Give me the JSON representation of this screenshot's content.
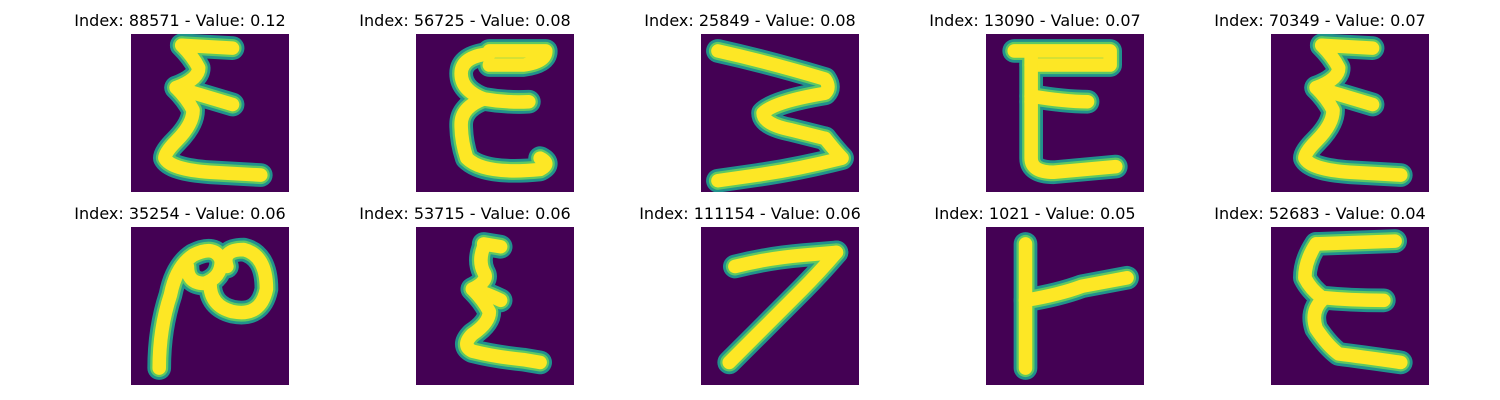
{
  "background": "#ffffff",
  "colors": {
    "tile_background": "#440154",
    "stroke_edge": "#21918c",
    "stroke_mid": "#5ec962",
    "stroke_core": "#fde725"
  },
  "figure": {
    "panels": [
      {
        "title": "Index: 88571 - Value: 0.12",
        "glyph": "sigma-like-e"
      },
      {
        "title": "Index: 56725 - Value: 0.08",
        "glyph": "rounded-e"
      },
      {
        "title": "Index: 25849 - Value: 0.08",
        "glyph": "w-rotated-zigzag"
      },
      {
        "title": "Index: 13090 - Value: 0.07",
        "glyph": "block-e"
      },
      {
        "title": "Index: 70349 - Value: 0.07",
        "glyph": "sigma-like-e"
      },
      {
        "title": "Index: 35254 - Value: 0.06",
        "glyph": "loop-squiggle"
      },
      {
        "title": "Index: 53715 - Value: 0.06",
        "glyph": "small-sigma-e"
      },
      {
        "title": "Index: 111154 - Value: 0.06",
        "glyph": "seven"
      },
      {
        "title": "Index: 1021 - Value: 0.05",
        "glyph": "t-rotated"
      },
      {
        "title": "Index: 52683 - Value: 0.04",
        "glyph": "open-e"
      }
    ]
  }
}
